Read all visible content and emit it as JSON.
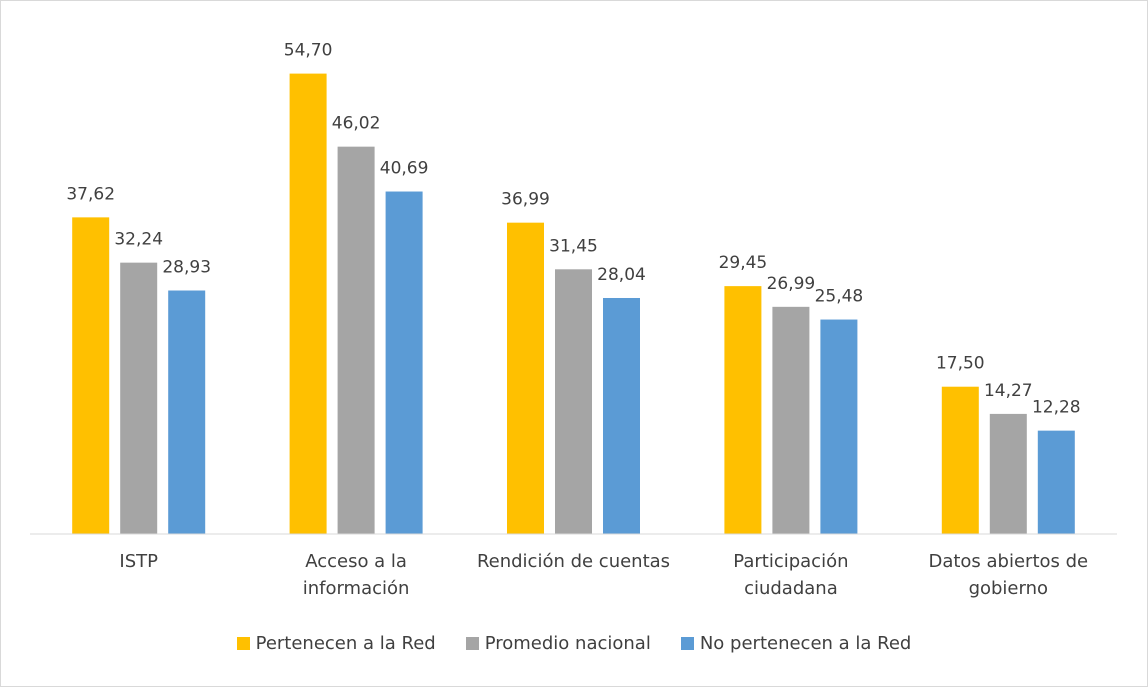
{
  "chart_data": {
    "type": "bar",
    "categories": [
      "ISTP",
      "Acceso a la información",
      "Rendición de cuentas",
      "Participación ciudadana",
      "Datos abiertos de gobierno"
    ],
    "series": [
      {
        "name": "Pertenecen a la Red",
        "color": "#FFC000",
        "values": [
          37.62,
          54.7,
          36.99,
          29.45,
          17.5
        ],
        "value_labels": [
          "37,62",
          "54,70",
          "36,99",
          "29,45",
          "17,50"
        ]
      },
      {
        "name": "Promedio nacional",
        "color": "#A5A5A5",
        "values": [
          32.24,
          46.02,
          31.45,
          26.99,
          14.27
        ],
        "value_labels": [
          "32,24",
          "46,02",
          "31,45",
          "26,99",
          "14,27"
        ]
      },
      {
        "name": "No pertenecen a la Red",
        "color": "#5B9BD5",
        "values": [
          28.93,
          40.69,
          28.04,
          25.48,
          12.28
        ],
        "value_labels": [
          "28,93",
          "40,69",
          "28,04",
          "25,48",
          "12,28"
        ]
      }
    ],
    "ylim": [
      0,
      60
    ],
    "legend": "bottom"
  }
}
